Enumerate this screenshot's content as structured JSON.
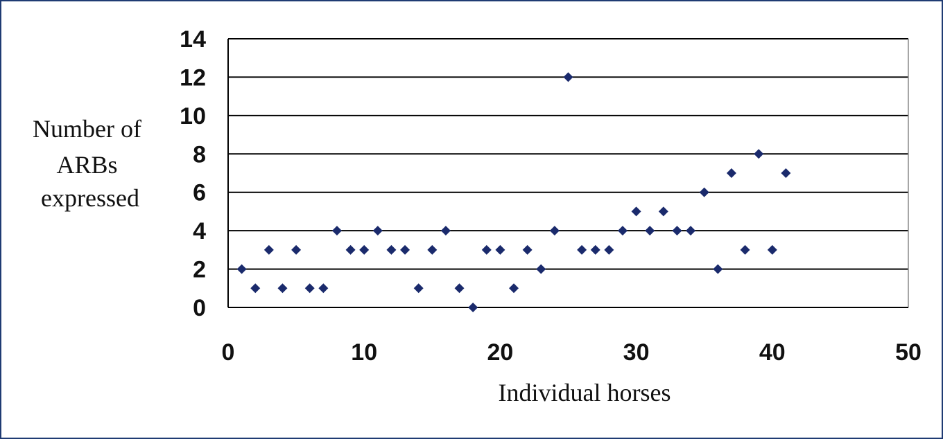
{
  "chart_data": {
    "type": "scatter",
    "xlabel": "Individual horses",
    "ylabel_lines": [
      "Number of",
      "ARBs",
      "expressed"
    ],
    "xlim": [
      0,
      50
    ],
    "ylim": [
      0,
      14
    ],
    "x_ticks": [
      0,
      10,
      20,
      30,
      40,
      50
    ],
    "y_ticks": [
      0,
      2,
      4,
      6,
      8,
      10,
      12,
      14
    ],
    "grid": "horizontal",
    "legend": "none",
    "marker_color": "#1a2a6c",
    "gridline_color": "#000000",
    "series": [
      {
        "x": [
          1,
          2,
          3,
          4,
          5,
          6,
          7,
          8,
          9,
          10,
          11,
          12,
          13,
          14,
          15,
          16,
          17,
          18,
          19,
          20,
          21,
          22,
          23,
          24,
          25,
          26,
          27,
          28,
          29,
          30,
          31,
          32,
          33,
          34,
          35,
          36,
          37,
          38,
          39,
          40,
          41
        ],
        "y": [
          2,
          1,
          3,
          1,
          3,
          1,
          1,
          4,
          3,
          3,
          4,
          3,
          3,
          1,
          3,
          4,
          1,
          0,
          3,
          3,
          1,
          3,
          2,
          4,
          12,
          3,
          3,
          3,
          4,
          5,
          4,
          5,
          4,
          4,
          6,
          2,
          7,
          3,
          8,
          3,
          7
        ]
      }
    ]
  }
}
